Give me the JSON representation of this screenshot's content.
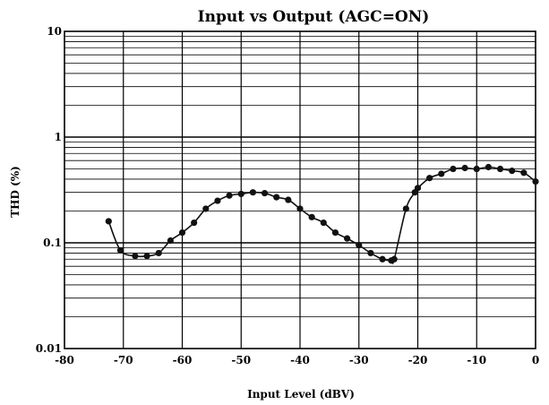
{
  "chart_data": {
    "type": "scatter",
    "title": "Input vs Output (AGC=ON)",
    "xlabel": "Input Level (dBV)",
    "ylabel": "THD (%)",
    "xlim": [
      -80,
      0
    ],
    "ylim": [
      0.01,
      10
    ],
    "yscale": "log",
    "grid": true,
    "x_ticks": [
      "-80",
      "-70",
      "-60",
      "-50",
      "-40",
      "-30",
      "-20",
      "-10",
      "0"
    ],
    "y_ticks": [
      "0.01",
      "0.1",
      "1",
      "10"
    ],
    "series": [
      {
        "x": [
          -72.5,
          -70.5,
          -68,
          -66,
          -64,
          -62,
          -60,
          -58,
          -56,
          -54,
          -52,
          -50,
          -48,
          -46,
          -44,
          -42,
          -40,
          -38,
          -36,
          -34,
          -32,
          -30,
          -28,
          -26,
          -24.5,
          -24,
          -22,
          -20.5,
          -20,
          -18,
          -16,
          -14,
          -12,
          -10,
          -8,
          -6,
          -4,
          -2,
          0
        ],
        "y": [
          0.16,
          0.085,
          0.075,
          0.075,
          0.08,
          0.105,
          0.125,
          0.155,
          0.21,
          0.25,
          0.28,
          0.29,
          0.3,
          0.295,
          0.27,
          0.255,
          0.21,
          0.175,
          0.155,
          0.125,
          0.11,
          0.095,
          0.08,
          0.07,
          0.068,
          0.07,
          0.21,
          0.3,
          0.33,
          0.41,
          0.45,
          0.5,
          0.51,
          0.5,
          0.52,
          0.5,
          0.48,
          0.46,
          0.38
        ]
      }
    ],
    "colors": {
      "line": "#111111",
      "marker": "#111111",
      "grid": "#000000"
    }
  }
}
